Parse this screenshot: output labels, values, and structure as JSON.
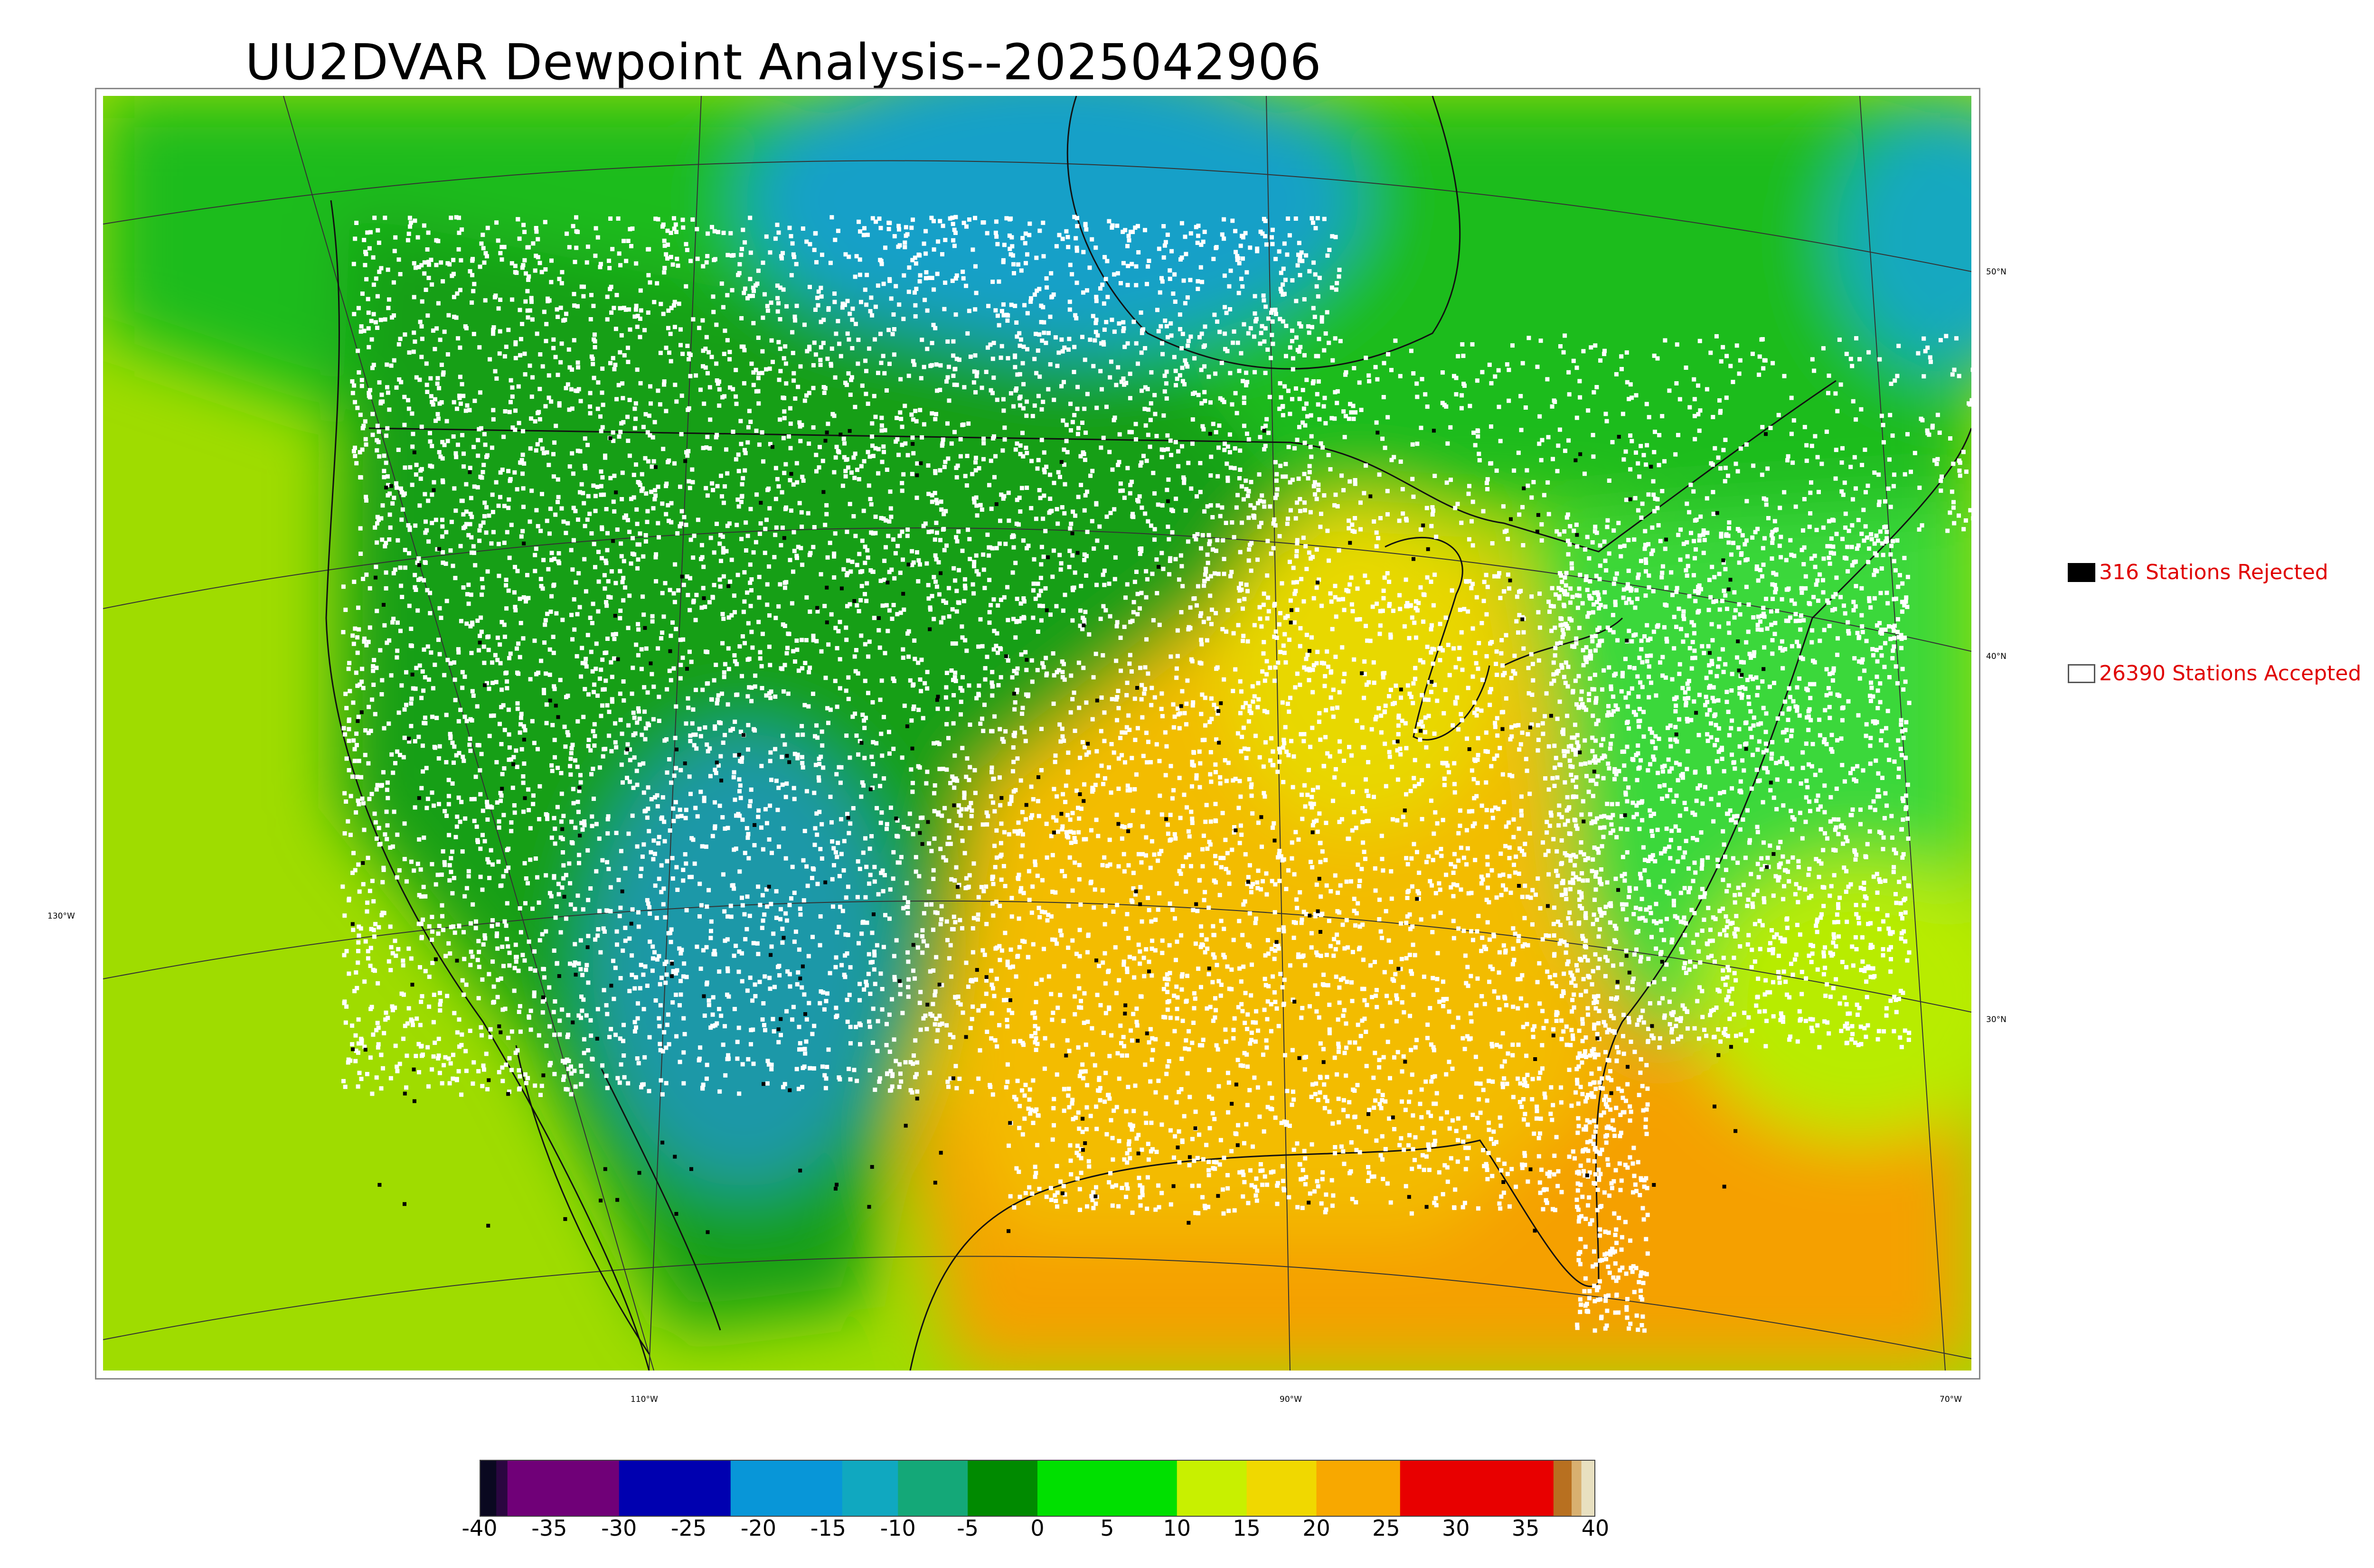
{
  "title": "UU2DVAR Dewpoint Analysis--2025042906",
  "map": {
    "lat_labels": [
      "50°N",
      "40°N",
      "30°N"
    ],
    "lon_labels": [
      "130°W",
      "110°W",
      "90°W",
      "70°W"
    ],
    "palette": {
      "ocean_pacific": "#a8e000",
      "ocean_gulf": "#f5a800",
      "canada_green": "#22b522",
      "hudson_teal": "#1aa0c8",
      "east_green": "#3ed83e",
      "interior_green": "#14a014",
      "southwest_teal": "#1f9ca8",
      "south_yellow": "#f0c000",
      "midwest_yellow": "#e6d800",
      "accepted_marker": "#ffffff",
      "rejected_marker": "#000000"
    }
  },
  "legend": {
    "rejected": {
      "label": "316 Stations Rejected",
      "swatch": "#000000"
    },
    "accepted": {
      "label": "26390 Stations Accepted",
      "swatch": "#ffffff"
    }
  },
  "colorbar": {
    "ticks": [
      "-40",
      "-35",
      "-30",
      "-25",
      "-20",
      "-15",
      "-10",
      "-5",
      "0",
      "5",
      "10",
      "15",
      "20",
      "25",
      "30",
      "35",
      "40"
    ],
    "segments": [
      {
        "from": -40,
        "to": -38.8,
        "color": "#0a0820"
      },
      {
        "from": -38.8,
        "to": -38,
        "color": "#2a0640"
      },
      {
        "from": -38,
        "to": -30,
        "color": "#700078"
      },
      {
        "from": -30,
        "to": -22,
        "color": "#0000b0"
      },
      {
        "from": -22,
        "to": -14,
        "color": "#0896d8"
      },
      {
        "from": -14,
        "to": -10,
        "color": "#10a8c0"
      },
      {
        "from": -10,
        "to": -5,
        "color": "#14a878"
      },
      {
        "from": -5,
        "to": 0,
        "color": "#008a00"
      },
      {
        "from": 0,
        "to": 10,
        "color": "#00e000"
      },
      {
        "from": 10,
        "to": 15,
        "color": "#c8f000"
      },
      {
        "from": 15,
        "to": 20,
        "color": "#f0d800"
      },
      {
        "from": 20,
        "to": 26,
        "color": "#f8a800"
      },
      {
        "from": 26,
        "to": 37,
        "color": "#e80000"
      },
      {
        "from": 37,
        "to": 38.3,
        "color": "#b87020"
      },
      {
        "from": 38.3,
        "to": 39,
        "color": "#d8b070"
      },
      {
        "from": 39,
        "to": 40,
        "color": "#e8e0c0"
      }
    ]
  }
}
